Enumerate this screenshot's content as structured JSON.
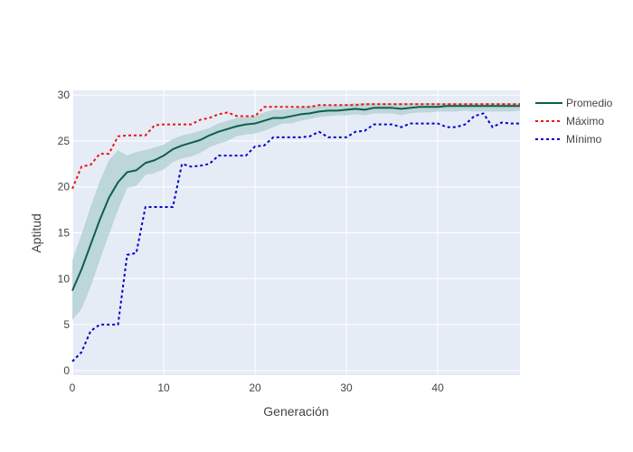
{
  "chart_data": {
    "type": "line",
    "xlabel": "Generación",
    "ylabel": "Aptitud",
    "xlim": [
      0,
      49
    ],
    "ylim": [
      -0.5,
      30.5
    ],
    "xticks": [
      0,
      10,
      20,
      30,
      40
    ],
    "yticks": [
      0,
      5,
      10,
      15,
      20,
      25,
      30
    ],
    "legend_position": "top-right",
    "grid": true,
    "colors": {
      "plot_bg": "#e5ecf6",
      "grid": "#ffffff",
      "band": "#aecfcf",
      "promedio": "#0e5e4e",
      "maximo": "#ee1111",
      "minimo": "#0000cc"
    },
    "x": [
      0,
      1,
      2,
      3,
      4,
      5,
      6,
      7,
      8,
      9,
      10,
      11,
      12,
      13,
      14,
      15,
      16,
      17,
      18,
      19,
      20,
      21,
      22,
      23,
      24,
      25,
      26,
      27,
      28,
      29,
      30,
      31,
      32,
      33,
      34,
      35,
      36,
      37,
      38,
      39,
      40,
      41,
      42,
      43,
      44,
      45,
      46,
      47,
      48,
      49
    ],
    "band_upper": [
      12.0,
      14.8,
      17.8,
      20.6,
      22.9,
      24.0,
      23.4,
      23.8,
      24.0,
      24.3,
      24.6,
      25.2,
      25.6,
      25.8,
      26.1,
      26.4,
      26.9,
      27.2,
      27.5,
      27.6,
      27.7,
      28.1,
      28.4,
      28.4,
      28.5,
      28.7,
      28.8,
      28.9,
      28.9,
      28.9,
      29.0,
      29.1,
      29.1,
      29.1,
      29.1,
      29.1,
      29.1,
      29.1,
      29.1,
      29.1,
      29.1,
      29.1,
      29.1,
      29.1,
      29.1,
      29.1,
      29.1,
      29.1,
      29.1,
      29.1
    ],
    "band_lower": [
      5.5,
      6.7,
      9.1,
      12.0,
      14.8,
      17.5,
      19.9,
      20.1,
      21.3,
      21.5,
      21.9,
      22.7,
      23.1,
      23.3,
      23.7,
      24.3,
      24.7,
      25.0,
      25.5,
      25.7,
      25.8,
      26.1,
      26.5,
      26.9,
      26.9,
      27.2,
      27.4,
      27.6,
      27.7,
      27.8,
      27.8,
      27.9,
      27.8,
      28.0,
      28.0,
      28.0,
      27.8,
      28.0,
      28.1,
      28.1,
      28.2,
      28.2,
      28.2,
      28.3,
      28.2,
      28.2,
      28.2,
      28.2,
      28.2,
      28.3
    ],
    "series": [
      {
        "name": "Promedio",
        "style": "solid",
        "values": [
          8.7,
          11.0,
          13.7,
          16.4,
          18.8,
          20.5,
          21.6,
          21.8,
          22.6,
          22.9,
          23.4,
          24.1,
          24.5,
          24.8,
          25.1,
          25.6,
          26.0,
          26.3,
          26.6,
          26.8,
          26.9,
          27.2,
          27.5,
          27.5,
          27.7,
          27.9,
          28.0,
          28.2,
          28.3,
          28.3,
          28.4,
          28.5,
          28.4,
          28.6,
          28.6,
          28.6,
          28.5,
          28.6,
          28.7,
          28.7,
          28.7,
          28.8,
          28.8,
          28.8,
          28.8,
          28.8,
          28.8,
          28.8,
          28.8,
          28.8
        ]
      },
      {
        "name": "Máximo",
        "style": "dotted",
        "values": [
          19.8,
          22.2,
          22.4,
          23.6,
          23.6,
          25.5,
          25.6,
          25.6,
          25.6,
          26.7,
          26.8,
          26.8,
          26.8,
          26.8,
          27.3,
          27.5,
          27.9,
          28.1,
          27.7,
          27.7,
          27.7,
          28.7,
          28.7,
          28.7,
          28.7,
          28.7,
          28.7,
          28.9,
          28.9,
          28.9,
          28.9,
          28.9,
          29.0,
          29.0,
          29.0,
          29.0,
          29.0,
          29.0,
          29.0,
          29.0,
          29.0,
          29.0,
          29.0,
          29.0,
          29.0,
          29.0,
          29.0,
          29.0,
          29.0,
          29.0
        ]
      },
      {
        "name": "Mínimo",
        "style": "dotted",
        "values": [
          1.0,
          2.0,
          4.3,
          5.0,
          5.0,
          5.0,
          12.6,
          12.8,
          17.8,
          17.8,
          17.8,
          17.8,
          22.5,
          22.2,
          22.3,
          22.5,
          23.4,
          23.4,
          23.4,
          23.4,
          24.4,
          24.5,
          25.4,
          25.4,
          25.4,
          25.4,
          25.5,
          26.0,
          25.4,
          25.4,
          25.4,
          26.0,
          26.1,
          26.8,
          26.8,
          26.8,
          26.5,
          26.9,
          26.9,
          26.9,
          26.9,
          26.5,
          26.5,
          26.8,
          27.7,
          28.0,
          26.5,
          27.0,
          26.9,
          26.9
        ]
      }
    ]
  }
}
